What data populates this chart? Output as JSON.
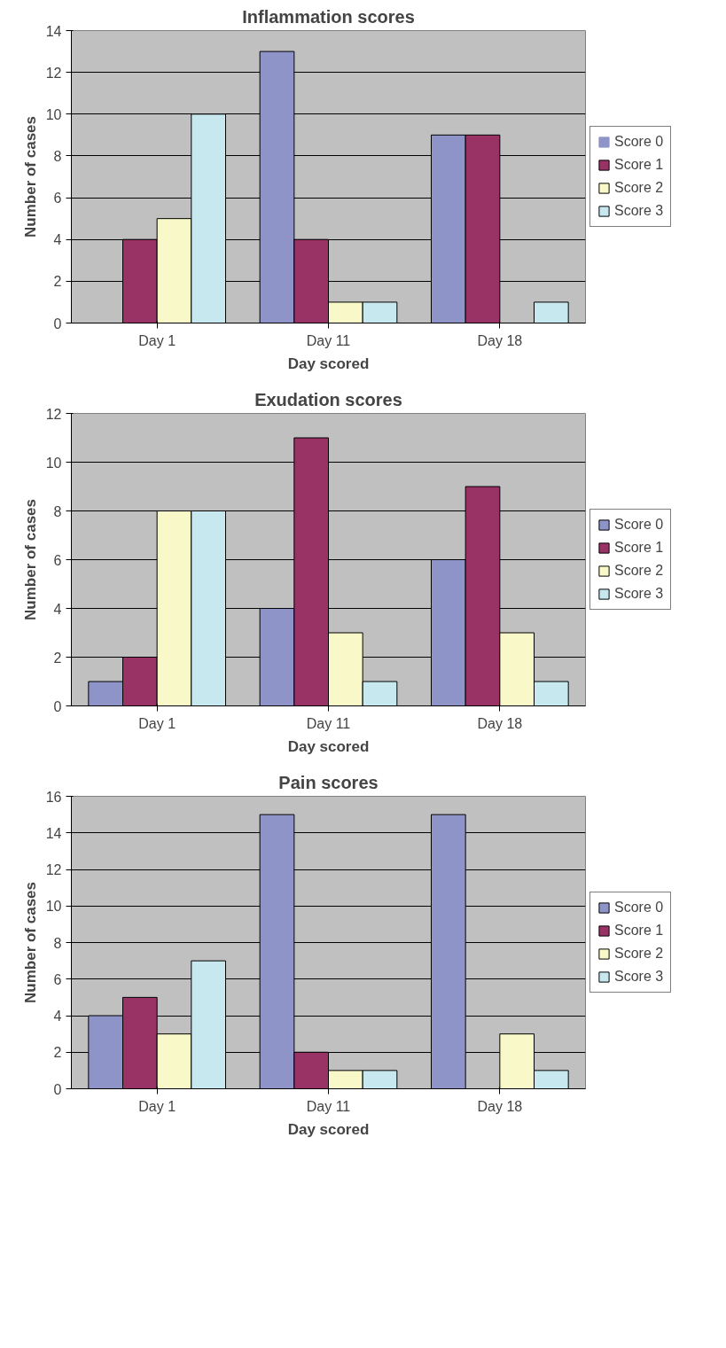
{
  "chart_data": [
    {
      "type": "bar",
      "title": "Inflammation scores",
      "xlabel": "Day scored",
      "ylabel": "Number of cases",
      "categories": [
        "Day 1",
        "Day 11",
        "Day 18"
      ],
      "ylim": [
        0,
        14
      ],
      "yticks": [
        0,
        2,
        4,
        6,
        8,
        10,
        12,
        14
      ],
      "grid": "y",
      "legend": "right",
      "series": [
        {
          "name": "Score 0",
          "color": "#8f94c8",
          "values": [
            0,
            13,
            9
          ]
        },
        {
          "name": "Score 1",
          "color": "#993366",
          "values": [
            4,
            4,
            9
          ]
        },
        {
          "name": "Score 2",
          "color": "#f8f8c8",
          "values": [
            5,
            1,
            0
          ]
        },
        {
          "name": "Score 3",
          "color": "#c8e8f0",
          "values": [
            10,
            1,
            1
          ]
        }
      ]
    },
    {
      "type": "bar",
      "title": "Exudation scores",
      "xlabel": "Day scored",
      "ylabel": "Number of cases",
      "categories": [
        "Day 1",
        "Day 11",
        "Day 18"
      ],
      "ylim": [
        0,
        12
      ],
      "yticks": [
        0,
        2,
        4,
        6,
        8,
        10,
        12
      ],
      "grid": "y",
      "legend": "right",
      "series": [
        {
          "name": "Score 0",
          "color": "#8f94c8",
          "values": [
            1,
            4,
            6
          ]
        },
        {
          "name": "Score 1",
          "color": "#993366",
          "values": [
            2,
            11,
            9
          ]
        },
        {
          "name": "Score 2",
          "color": "#f8f8c8",
          "values": [
            8,
            3,
            3
          ]
        },
        {
          "name": "Score 3",
          "color": "#c8e8f0",
          "values": [
            8,
            1,
            1
          ]
        }
      ]
    },
    {
      "type": "bar",
      "title": "Pain scores",
      "xlabel": "Day scored",
      "ylabel": "Number of cases",
      "categories": [
        "Day 1",
        "Day 11",
        "Day 18"
      ],
      "ylim": [
        0,
        16
      ],
      "yticks": [
        0,
        2,
        4,
        6,
        8,
        10,
        12,
        14,
        16
      ],
      "grid": "y",
      "legend": "right",
      "series": [
        {
          "name": "Score 0",
          "color": "#8f94c8",
          "values": [
            4,
            15,
            15
          ]
        },
        {
          "name": "Score 1",
          "color": "#993366",
          "values": [
            5,
            2,
            0
          ]
        },
        {
          "name": "Score 2",
          "color": "#f8f8c8",
          "values": [
            3,
            1,
            3
          ]
        },
        {
          "name": "Score 3",
          "color": "#c8e8f0",
          "values": [
            7,
            1,
            1
          ]
        }
      ]
    }
  ]
}
